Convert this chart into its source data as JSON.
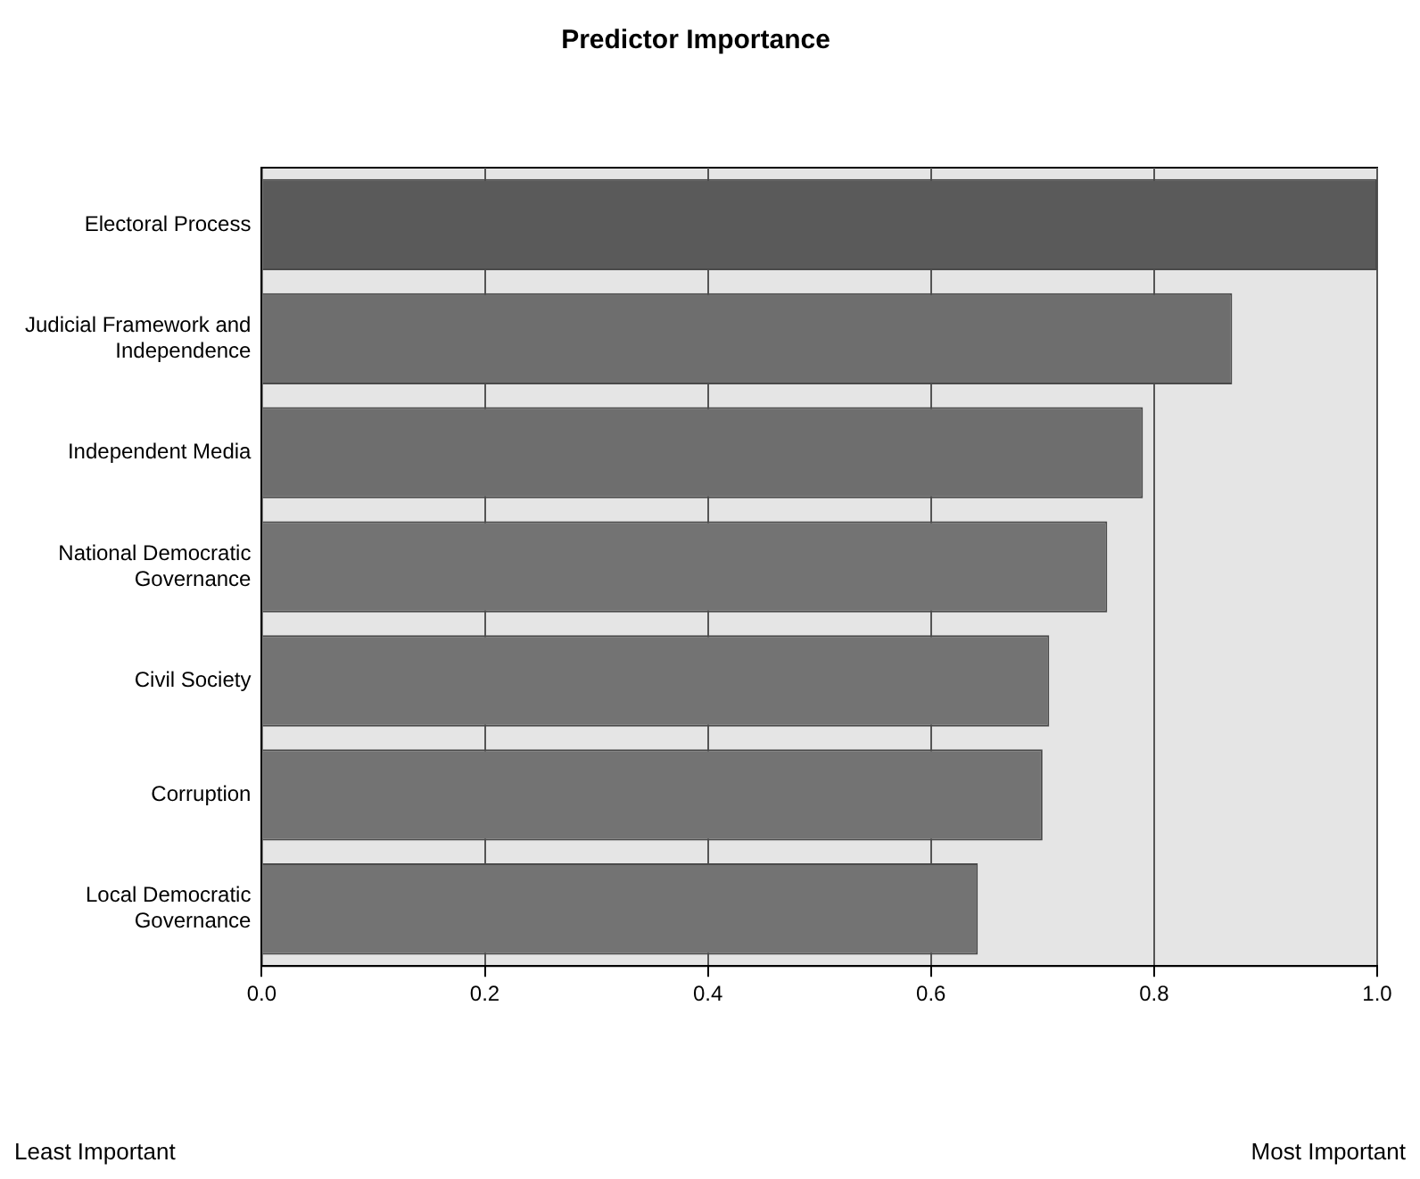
{
  "chart_data": {
    "type": "bar",
    "orientation": "horizontal",
    "title": "Predictor Importance",
    "categories": [
      "Electoral Process",
      "Judicial Framework and Independence",
      "Independent Media",
      "National Democratic Governance",
      "Civil Society",
      "Corruption",
      "Local Democratic Governance"
    ],
    "values": [
      1.0,
      0.87,
      0.79,
      0.758,
      0.706,
      0.7,
      0.642
    ],
    "colors": [
      "#5a5a5a",
      "#6e6e6e",
      "#6e6e6e",
      "#737373",
      "#737373",
      "#737373",
      "#737373"
    ],
    "xlim": [
      0,
      1
    ],
    "xticks": [
      {
        "value": 0,
        "label": "0.0"
      },
      {
        "value": 0.2,
        "label": "0.2"
      },
      {
        "value": 0.4,
        "label": "0.4"
      },
      {
        "value": 0.6,
        "label": "0.6"
      },
      {
        "value": 0.8,
        "label": "0.8"
      },
      {
        "value": 1,
        "label": "1.0"
      }
    ],
    "grid": "x",
    "legend": false,
    "annotations": [
      "Least Important",
      "Most Important"
    ]
  }
}
